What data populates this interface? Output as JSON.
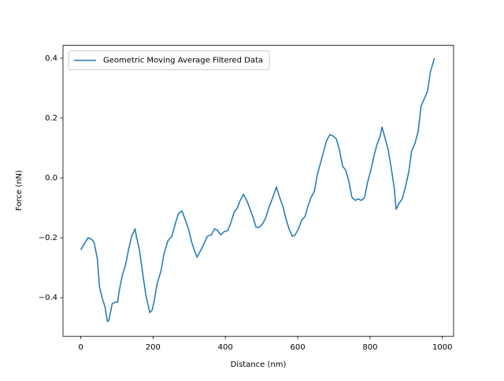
{
  "chart_data": {
    "type": "line",
    "xlabel": "Distance (nm)",
    "ylabel": "Force (nN)",
    "x": [
      0,
      10,
      20,
      30,
      37,
      46,
      52,
      59,
      67,
      74,
      78,
      87,
      96,
      102,
      106,
      115,
      124,
      133,
      141,
      150,
      154,
      163,
      172,
      180,
      191,
      198,
      204,
      211,
      222,
      230,
      241,
      252,
      261,
      270,
      280,
      289,
      298,
      307,
      315,
      322,
      328,
      339,
      350,
      361,
      370,
      378,
      387,
      396,
      407,
      415,
      424,
      433,
      441,
      450,
      459,
      467,
      476,
      485,
      493,
      502,
      511,
      520,
      528,
      537,
      541,
      550,
      559,
      567,
      576,
      585,
      593,
      602,
      611,
      620,
      628,
      637,
      646,
      654,
      663,
      672,
      680,
      689,
      698,
      707,
      715,
      724,
      733,
      741,
      750,
      759,
      767,
      776,
      785,
      793,
      802,
      811,
      820,
      828,
      833,
      841,
      850,
      859,
      867,
      872,
      880,
      889,
      898,
      907,
      915,
      924,
      933,
      941,
      950,
      959,
      967,
      978
    ],
    "series": [
      {
        "name": "Geometric Moving Average Filtered Data",
        "color": "#1f77b4",
        "values": [
          -0.24,
          -0.22,
          -0.2,
          -0.205,
          -0.215,
          -0.27,
          -0.365,
          -0.4,
          -0.43,
          -0.48,
          -0.475,
          -0.42,
          -0.415,
          -0.415,
          -0.38,
          -0.325,
          -0.29,
          -0.235,
          -0.195,
          -0.17,
          -0.195,
          -0.245,
          -0.325,
          -0.39,
          -0.45,
          -0.44,
          -0.405,
          -0.355,
          -0.31,
          -0.255,
          -0.21,
          -0.195,
          -0.155,
          -0.12,
          -0.11,
          -0.14,
          -0.17,
          -0.215,
          -0.245,
          -0.265,
          -0.25,
          -0.225,
          -0.195,
          -0.19,
          -0.17,
          -0.175,
          -0.19,
          -0.18,
          -0.175,
          -0.15,
          -0.115,
          -0.1,
          -0.075,
          -0.055,
          -0.075,
          -0.1,
          -0.13,
          -0.165,
          -0.165,
          -0.155,
          -0.135,
          -0.1,
          -0.075,
          -0.045,
          -0.03,
          -0.065,
          -0.095,
          -0.135,
          -0.17,
          -0.195,
          -0.19,
          -0.17,
          -0.14,
          -0.13,
          -0.095,
          -0.065,
          -0.045,
          0.01,
          0.05,
          0.09,
          0.125,
          0.145,
          0.14,
          0.13,
          0.095,
          0.04,
          0.025,
          -0.01,
          -0.065,
          -0.075,
          -0.07,
          -0.075,
          -0.065,
          -0.015,
          0.025,
          0.075,
          0.115,
          0.14,
          0.17,
          0.135,
          0.095,
          0.03,
          -0.035,
          -0.105,
          -0.085,
          -0.07,
          -0.03,
          0.02,
          0.09,
          0.115,
          0.155,
          0.24,
          0.265,
          0.29,
          0.355,
          0.4
        ]
      }
    ],
    "xlim": [
      -49,
      1031
    ],
    "ylim": [
      -0.529,
      0.443
    ],
    "xticks": [
      0,
      200,
      400,
      600,
      800,
      1000
    ],
    "yticks": [
      {
        "value": -0.4,
        "label": "−0.4"
      },
      {
        "value": -0.2,
        "label": "−0.2"
      },
      {
        "value": 0,
        "label": "0.0"
      },
      0.2,
      0.4
    ],
    "legend": "upper left",
    "grid": false
  }
}
